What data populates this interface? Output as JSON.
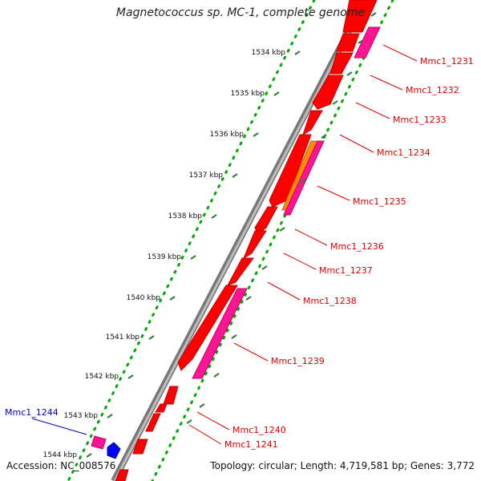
{
  "title": "Magnetococcus sp. MC-1, complete genome",
  "accession": "Accession: NC_008576",
  "summary": "Topology: circular; Length: 4,719,581 bp; Genes: 3,772",
  "ticks": [
    "1534 kbp",
    "1535 kbp",
    "1536 kbp",
    "1537 kbp",
    "1538 kbp",
    "1539 kbp",
    "1540 kbp",
    "1541 kbp",
    "1542 kbp",
    "1543 kbp",
    "1544 kbp"
  ],
  "gene_labels": [
    {
      "text": "Mmc1_1231",
      "color": "#e00000"
    },
    {
      "text": "Mmc1_1232",
      "color": "#e00000"
    },
    {
      "text": "Mmc1_1233",
      "color": "#e00000"
    },
    {
      "text": "Mmc1_1234",
      "color": "#e00000"
    },
    {
      "text": "Mmc1_1235",
      "color": "#e00000"
    },
    {
      "text": "Mmc1_1236",
      "color": "#e00000"
    },
    {
      "text": "Mmc1_1237",
      "color": "#e00000"
    },
    {
      "text": "Mmc1_1238",
      "color": "#e00000"
    },
    {
      "text": "Mmc1_1239",
      "color": "#e00000"
    },
    {
      "text": "Mmc1_1240",
      "color": "#e00000"
    },
    {
      "text": "Mmc1_1241",
      "color": "#e00000"
    },
    {
      "text": "Mmc1_1244",
      "color": "#0000cc"
    }
  ],
  "colors": {
    "cds": "#ff0000",
    "cds_alt": "#ff1493",
    "orange": "#ff8c00",
    "blue": "#0000ff",
    "backbone": "#8c8c8c",
    "dots": "#00aa00",
    "tick": "#2e7d32"
  }
}
